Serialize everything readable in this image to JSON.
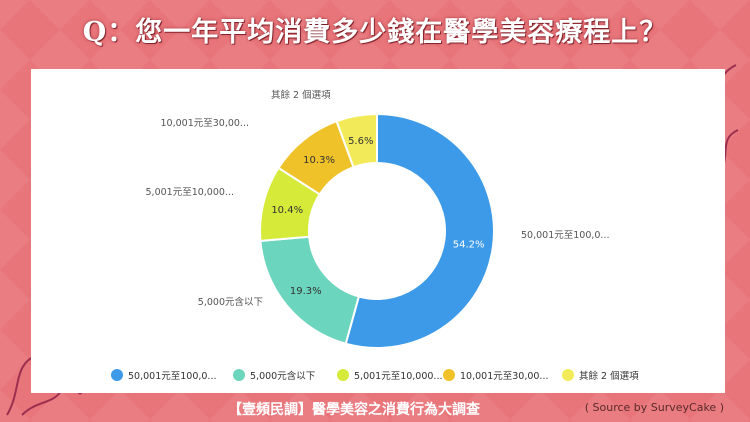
{
  "title": "Q：您一年平均消費多少錢在醫學美容療程上？",
  "footer": {
    "survey_title": "【壹頻民調】醫學美容之消費行為大調查",
    "source": "( Source by SurveyCake )"
  },
  "colors": {
    "background": "#e8757a",
    "card": "#ffffff"
  },
  "chart_data": {
    "type": "pie",
    "donut": true,
    "categories": [
      "50,001元至100,0...",
      "5,000元含以下",
      "5,001元至10,000...",
      "10,001元至30,00...",
      "其餘 2 個選項"
    ],
    "values": [
      54.2,
      19.3,
      10.4,
      10.3,
      5.6
    ],
    "value_labels": [
      "54.2%",
      "19.3%",
      "10.4%",
      "10.3%",
      "5.6%"
    ],
    "colors": [
      "#3d9ae8",
      "#6cd5bd",
      "#d6ea3a",
      "#f0c22a",
      "#f3ea5a"
    ],
    "legend_position": "bottom"
  }
}
